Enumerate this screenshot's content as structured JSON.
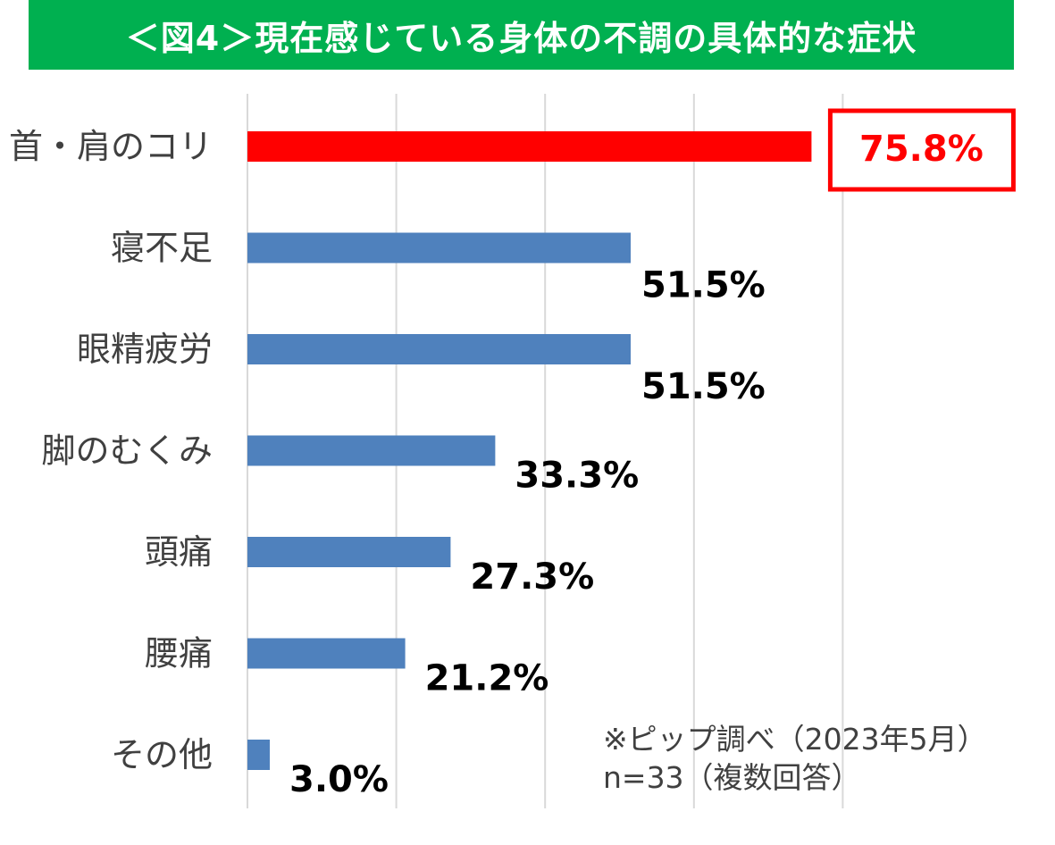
{
  "title": "＜図4＞現在感じている身体の不調の具体的な症状",
  "colors": {
    "title_bg": "#00b050",
    "bar": "#4f81bd",
    "highlight": "#ff0000",
    "gridline": "#d9d9d9"
  },
  "chart_data": {
    "type": "bar",
    "orientation": "horizontal",
    "title": "＜図4＞現在感じている身体の不調の具体的な症状",
    "categories": [
      "首・肩のコリ",
      "寝不足",
      "眼精疲労",
      "脚のむくみ",
      "頭痛",
      "腰痛",
      "その他"
    ],
    "values": [
      75.8,
      51.5,
      51.5,
      33.3,
      27.3,
      21.2,
      3.0
    ],
    "value_labels": [
      "75.8%",
      "51.5%",
      "51.5%",
      "33.3%",
      "27.3%",
      "21.2%",
      "3.0%"
    ],
    "highlight_index": 0,
    "xlim": [
      0,
      80
    ],
    "grid": true,
    "xlabel": "",
    "ylabel": ""
  },
  "note": {
    "line1": "※ピップ調べ（2023年5月）",
    "line2": "n=33（複数回答）"
  }
}
